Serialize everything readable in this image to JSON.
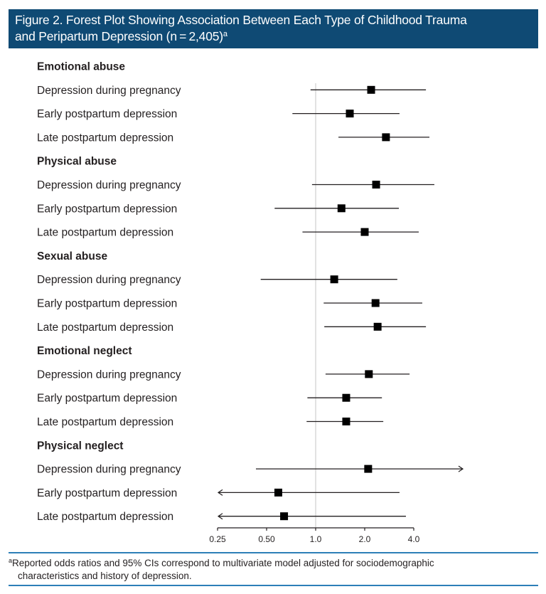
{
  "figure": {
    "title_line1": "Figure 2. Forest Plot Showing Association Between Each Type of Childhood Trauma",
    "title_line2": "and Peripartum Depression (n = 2,405)",
    "title_superscript": "a",
    "footnote_marker": "a",
    "footnote_line1": "Reported odds ratios and 95% CIs correspond to multivariate model adjusted for sociodemographic",
    "footnote_line2": "characteristics and history of depression.",
    "colors": {
      "header_bg": "#0f4a74",
      "rule": "#2d7fb8",
      "marker": "#000000",
      "reference_line": "#d9d9d9"
    }
  },
  "chart_data": {
    "type": "forest",
    "title": "Forest Plot Showing Association Between Each Type of Childhood Trauma and Peripartum Depression (n = 2,405)",
    "xlabel": "",
    "xscale": "log2",
    "xlim": [
      0.25,
      4.0
    ],
    "xticks": [
      0.25,
      0.5,
      1.0,
      2.0,
      4.0
    ],
    "xtick_labels": [
      "0.25",
      "0.50",
      "1.0",
      "2.0",
      "4.0"
    ],
    "reference_value": 1.0,
    "groups": [
      {
        "name": "Emotional abuse",
        "rows": [
          {
            "label": "Depression during pregnancy",
            "or": 2.19,
            "lower": 0.93,
            "upper": 4.75
          },
          {
            "label": "Early postpartum depression",
            "or": 1.62,
            "lower": 0.72,
            "upper": 3.27
          },
          {
            "label": "Late postpartum depression",
            "or": 2.7,
            "lower": 1.38,
            "upper": 4.99
          }
        ]
      },
      {
        "name": "Physical abuse",
        "rows": [
          {
            "label": "Depression during pregnancy",
            "or": 2.35,
            "lower": 0.95,
            "upper": 5.35
          },
          {
            "label": "Early postpartum depression",
            "or": 1.44,
            "lower": 0.56,
            "upper": 3.24
          },
          {
            "label": "Late postpartum depression",
            "or": 2.0,
            "lower": 0.83,
            "upper": 4.29
          }
        ]
      },
      {
        "name": "Sexual abuse",
        "rows": [
          {
            "label": "Depression during pregnancy",
            "or": 1.3,
            "lower": 0.46,
            "upper": 3.17
          },
          {
            "label": "Early postpartum depression",
            "or": 2.33,
            "lower": 1.12,
            "upper": 4.51
          },
          {
            "label": "Late postpartum depression",
            "or": 2.4,
            "lower": 1.13,
            "upper": 4.75
          }
        ]
      },
      {
        "name": "Emotional neglect",
        "rows": [
          {
            "label": "Depression during pregnancy",
            "or": 2.12,
            "lower": 1.15,
            "upper": 3.77
          },
          {
            "label": "Early postpartum depression",
            "or": 1.54,
            "lower": 0.89,
            "upper": 2.55
          },
          {
            "label": "Late postpartum depression",
            "or": 1.54,
            "lower": 0.88,
            "upper": 2.6
          }
        ]
      },
      {
        "name": "Physical neglect",
        "rows": [
          {
            "label": "Depression during pregnancy",
            "or": 2.1,
            "lower": 0.43,
            "upper": 8.0,
            "upper_truncated": true
          },
          {
            "label": "Early postpartum depression",
            "or": 0.59,
            "lower": 0.25,
            "upper": 3.27,
            "lower_truncated": true
          },
          {
            "label": "Late postpartum depression",
            "or": 0.64,
            "lower": 0.25,
            "upper": 3.58,
            "lower_truncated": true
          }
        ]
      }
    ]
  }
}
